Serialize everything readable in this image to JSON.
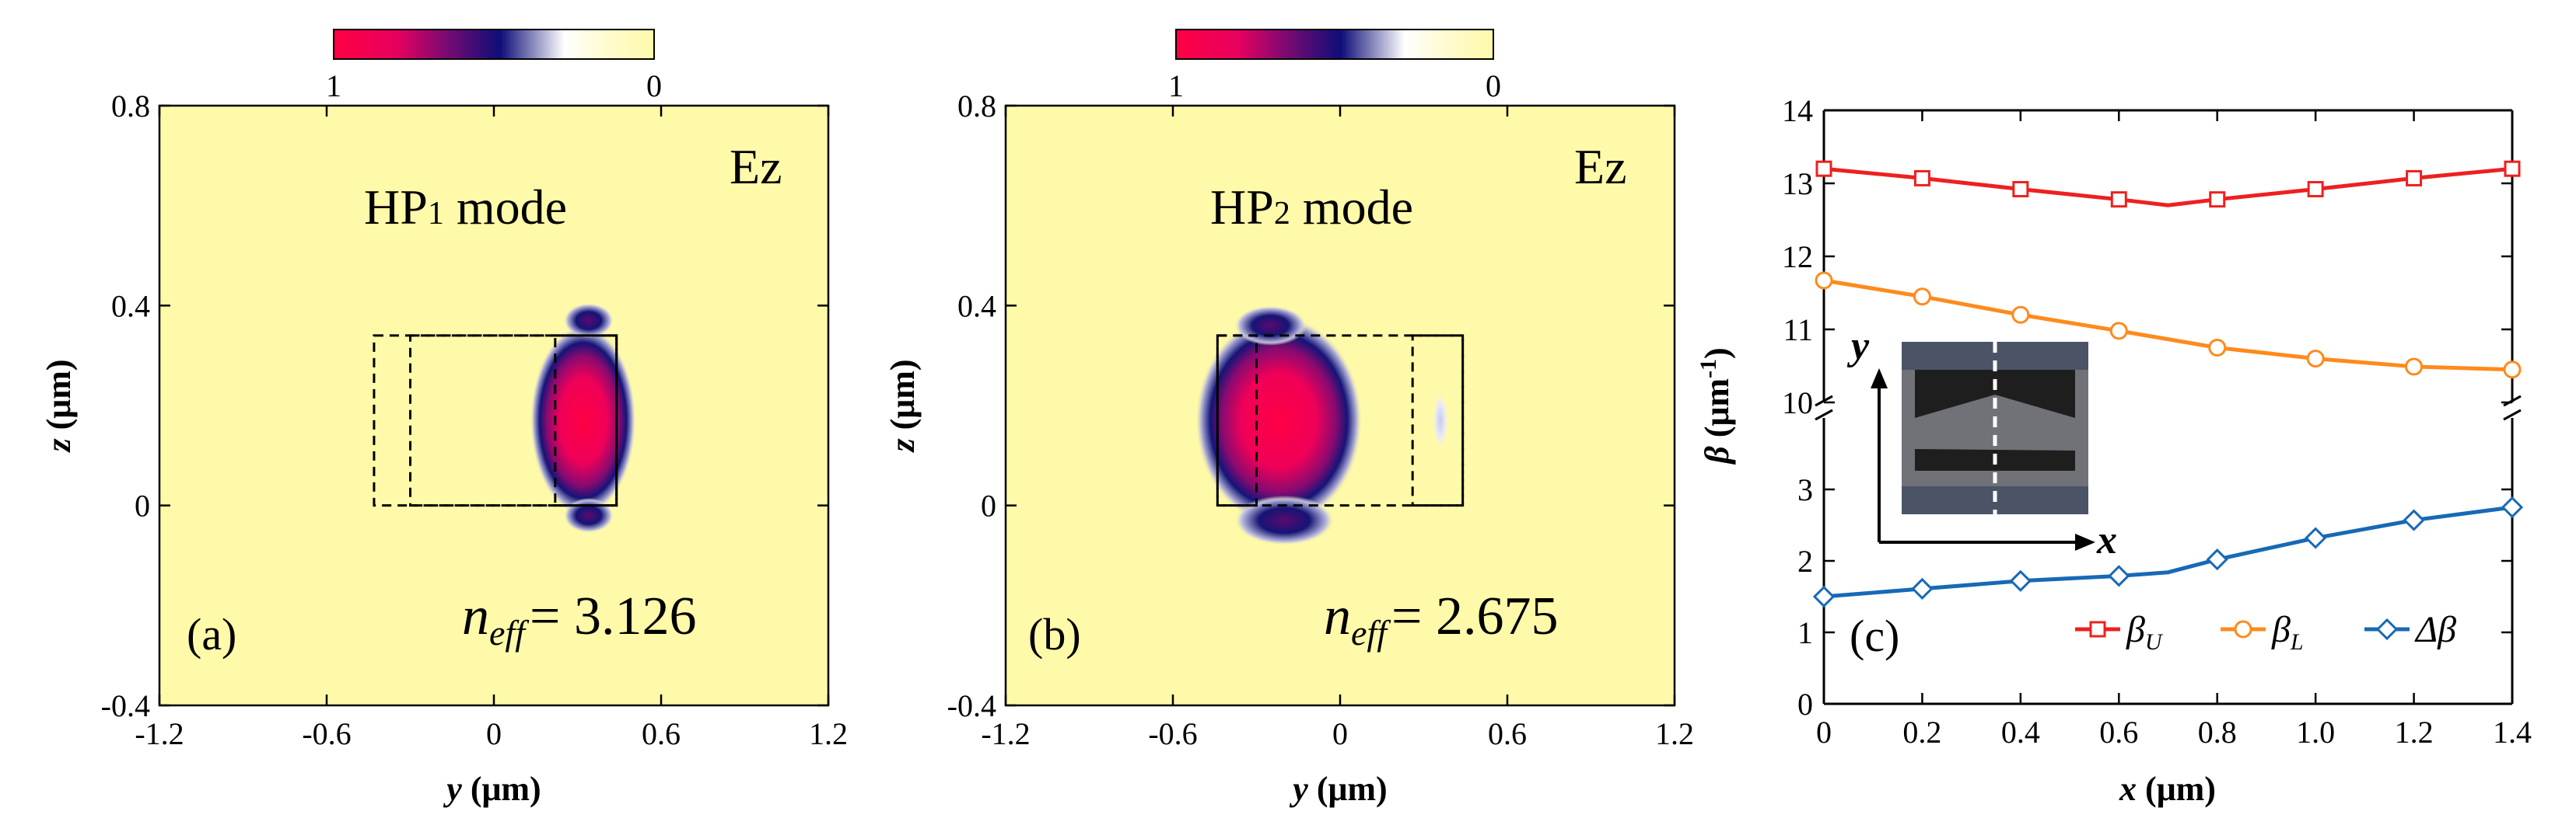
{
  "colorbar": {
    "colors": [
      "#ff0044",
      "#e6005f",
      "#7a0a72",
      "#0e0e78",
      "#ffffff",
      "#fffbd0",
      "#fffaa9"
    ],
    "left_label": "1",
    "right_label": "0"
  },
  "chart_data": [
    {
      "type": "heatmap",
      "panel": "(a)",
      "field_component": "Ez",
      "mode_label_prefix": "HP",
      "mode_label_subscript": "1",
      "mode_label_suffix": " mode",
      "neff_symbol": "n",
      "neff_subscript": "eff",
      "neff_value": "= 3.126",
      "xlabel": "y (μm)",
      "ylabel": "z (μm)",
      "xlim": [
        -1.2,
        1.2
      ],
      "ylim": [
        -0.4,
        0.8
      ],
      "xticks": [
        "-1.2",
        "-0.6",
        "0",
        "0.6",
        "1.2"
      ],
      "yticks": [
        "-0.4",
        "0",
        "0.4",
        "0.8"
      ],
      "background_color": "#fffaa9",
      "waveguide_outlines_um": [
        {
          "y0": -0.43,
          "y1": 0.44,
          "z0": 0.0,
          "z1": 0.34
        },
        {
          "y0": -0.3,
          "y1": 0.44,
          "z0": 0.0,
          "z1": 0.34
        },
        {
          "y0": 0.22,
          "y1": 0.44,
          "z0": 0.0,
          "z1": 0.34
        }
      ],
      "field_lobes_um": [
        {
          "y": 0.32,
          "z": 0.17,
          "ry": 0.19,
          "rz": 0.19
        },
        {
          "y": 0.34,
          "z": 0.37,
          "ry": 0.09,
          "rz": 0.035
        },
        {
          "y": 0.34,
          "z": -0.02,
          "ry": 0.09,
          "rz": 0.035
        }
      ]
    },
    {
      "type": "heatmap",
      "panel": "(b)",
      "field_component": "Ez",
      "mode_label_prefix": "HP",
      "mode_label_subscript": "2",
      "mode_label_suffix": " mode",
      "neff_symbol": "n",
      "neff_subscript": "eff",
      "neff_value": "= 2.675",
      "xlabel": "y (μm)",
      "ylabel": "z (μm)",
      "xlim": [
        -1.2,
        1.2
      ],
      "ylim": [
        -0.4,
        0.8
      ],
      "xticks": [
        "-1.2",
        "-0.6",
        "0",
        "0.6",
        "1.2"
      ],
      "yticks": [
        "-0.4",
        "0",
        "0.4",
        "0.8"
      ],
      "background_color": "#fffaa9",
      "waveguide_outlines_um": [
        {
          "y0": -0.44,
          "y1": 0.44,
          "z0": 0.0,
          "z1": 0.34
        },
        {
          "y0": -0.44,
          "y1": -0.3,
          "z0": 0.0,
          "z1": 0.34
        },
        {
          "y0": 0.26,
          "y1": 0.44,
          "z0": 0.0,
          "z1": 0.34
        }
      ],
      "field_lobes_um": [
        {
          "y": -0.22,
          "z": 0.17,
          "ry": 0.3,
          "rz": 0.21
        },
        {
          "y": -0.25,
          "z": 0.36,
          "ry": 0.13,
          "rz": 0.04
        },
        {
          "y": -0.2,
          "z": -0.03,
          "ry": 0.18,
          "rz": 0.05
        },
        {
          "y": 0.36,
          "z": 0.17,
          "ry": 0.03,
          "rz": 0.06
        }
      ]
    },
    {
      "type": "line",
      "panel": "(c)",
      "xlabel": "x (μm)",
      "ylabel": "β (μm⁻¹)",
      "xlim": [
        0,
        1.4
      ],
      "upper_ylim": [
        10,
        14
      ],
      "lower_ylim": [
        0,
        4
      ],
      "xticks": [
        "0",
        "0.2",
        "0.4",
        "0.6",
        "0.8",
        "1.0",
        "1.2",
        "1.4"
      ],
      "upper_yticks": [
        "10",
        "11",
        "12",
        "13",
        "14"
      ],
      "lower_yticks": [
        "0",
        "1",
        "2",
        "3"
      ],
      "inset_axis_labels": {
        "x": "x",
        "y": "y"
      },
      "series": [
        {
          "name": "βU",
          "label_main": "β",
          "label_sub": "U",
          "color": "#ee2020",
          "marker": "square",
          "axis": "upper",
          "x": [
            0,
            0.2,
            0.4,
            0.6,
            0.7,
            0.8,
            1.0,
            1.2,
            1.4
          ],
          "y": [
            13.2,
            13.07,
            12.92,
            12.78,
            12.7,
            12.78,
            12.92,
            13.07,
            13.2
          ],
          "marker_x": [
            0,
            0.2,
            0.4,
            0.6,
            0.8,
            1.0,
            1.2,
            1.4
          ]
        },
        {
          "name": "βL",
          "label_main": "β",
          "label_sub": "L",
          "color": "#ff8a1c",
          "marker": "circle",
          "axis": "upper",
          "x": [
            0,
            0.2,
            0.4,
            0.6,
            0.8,
            1.0,
            1.2,
            1.4
          ],
          "y": [
            11.67,
            11.45,
            11.2,
            10.98,
            10.75,
            10.6,
            10.49,
            10.45
          ],
          "marker_x": [
            0,
            0.2,
            0.4,
            0.6,
            0.8,
            1.0,
            1.2,
            1.4
          ]
        },
        {
          "name": "Δβ",
          "label_main": "Δβ",
          "label_sub": "",
          "color": "#1769b5",
          "marker": "diamond",
          "axis": "lower",
          "x": [
            0,
            0.2,
            0.4,
            0.6,
            0.7,
            0.8,
            1.0,
            1.2,
            1.4
          ],
          "y": [
            1.5,
            1.61,
            1.72,
            1.79,
            1.84,
            2.02,
            2.32,
            2.57,
            2.75
          ],
          "marker_x": [
            0,
            0.2,
            0.4,
            0.6,
            0.8,
            1.0,
            1.2,
            1.4
          ]
        }
      ],
      "panel_label": "(c)"
    }
  ]
}
